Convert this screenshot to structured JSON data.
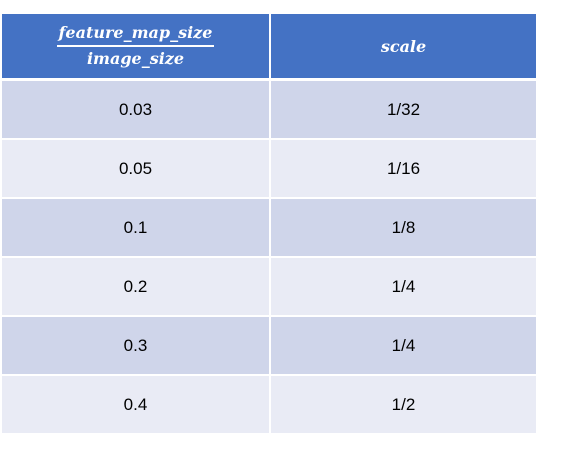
{
  "table": {
    "header": {
      "col1_numerator": "feature_map_size",
      "col1_denominator": "image_size",
      "col2": "scale"
    },
    "rows": [
      {
        "ratio": "0.03",
        "scale": "1/32"
      },
      {
        "ratio": "0.05",
        "scale": "1/16"
      },
      {
        "ratio": "0.1",
        "scale": "1/8"
      },
      {
        "ratio": "0.2",
        "scale": "1/4"
      },
      {
        "ratio": "0.3",
        "scale": "1/4"
      },
      {
        "ratio": "0.4",
        "scale": "1/2"
      }
    ]
  },
  "colors": {
    "header_bg": "#4472c4",
    "row_odd_bg": "#cfd5ea",
    "row_even_bg": "#e9ebf5"
  }
}
